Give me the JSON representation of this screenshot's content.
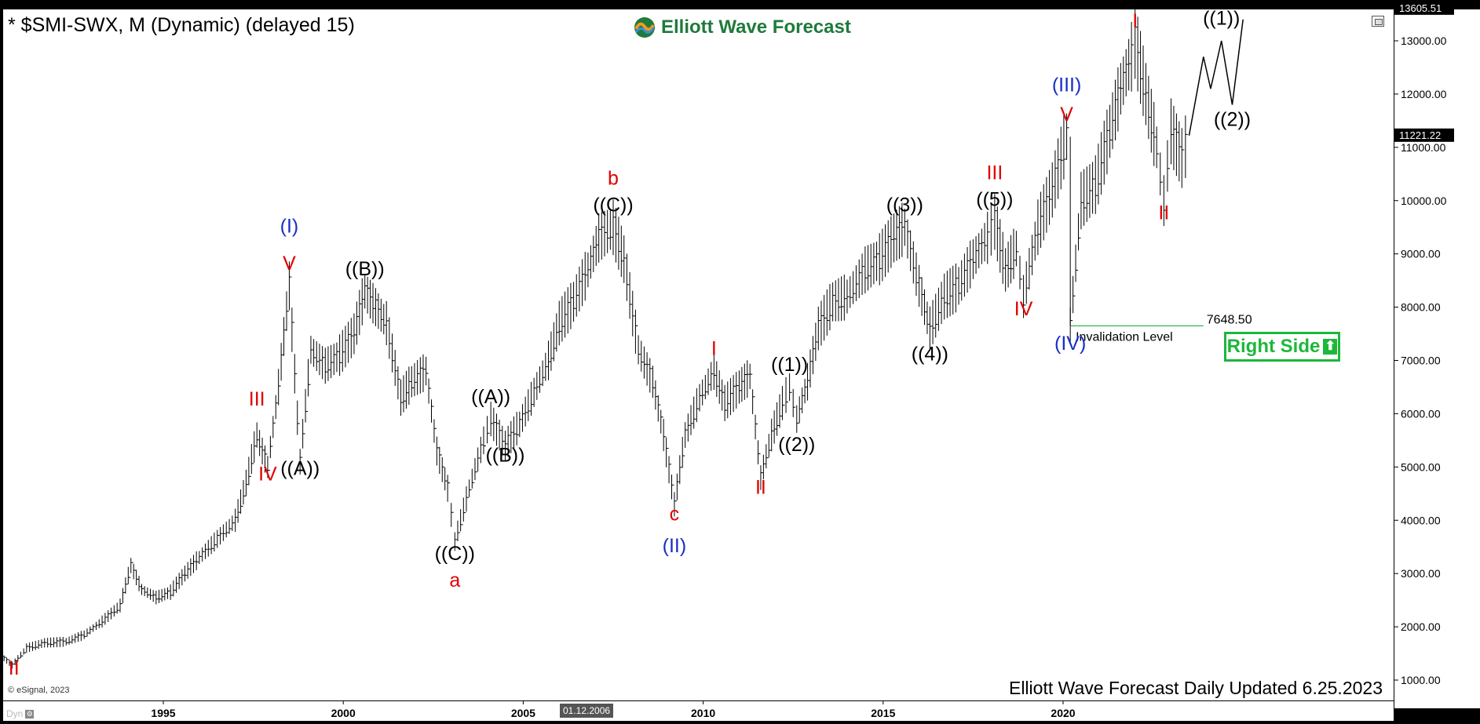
{
  "window": {
    "symbol_title": "* $SMI-SWX, M (Dynamic) (delayed 15)",
    "brand_name": "Elliott Wave Forecast",
    "footer_text": "Elliott Wave Forecast Daily Updated 6.25.2023",
    "copyright": "© eSignal, 2023",
    "dyn_label": "Dyn",
    "date_cursor": "01.12.2006",
    "right_side_label": "Right Side"
  },
  "colors": {
    "black": "#000000",
    "red": "#e00000",
    "blue": "#1a2fc4",
    "green": "#1db73a",
    "brand": "#1f7a3c"
  },
  "icons": {
    "logo": "elliott-wave-logo-icon",
    "window_button": "window-restore-icon",
    "arrow": "up-arrow-icon"
  },
  "chart_data": {
    "type": "line",
    "title": "* $SMI-SWX, M (Dynamic) (delayed 15)",
    "ylim": [
      700,
      13800
    ],
    "y_ticks": [
      1000,
      2000,
      3000,
      4000,
      5000,
      6000,
      7000,
      8000,
      9000,
      10000,
      11000,
      12000,
      13000
    ],
    "y_tick_labels": [
      "1000.00",
      "2000.00",
      "3000.00",
      "4000.00",
      "5000.00",
      "6000.00",
      "7000.00",
      "8000.00",
      "9000.00",
      "10000.00",
      "11000.00",
      "12000.00",
      "13000.00"
    ],
    "xlim": [
      1990.5,
      2025.0
    ],
    "x_ticks": [
      1995,
      2000,
      2005,
      2010,
      2015,
      2020
    ],
    "x_tick_labels": [
      "1995",
      "2000",
      "2005",
      "2010",
      "2015",
      "2020"
    ],
    "price_badges": [
      {
        "label": "13605.51",
        "value": 13605.51
      },
      {
        "label": "11221.22",
        "value": 11221.22
      }
    ],
    "price_path": [
      [
        1990.5,
        1450
      ],
      [
        1990.8,
        1280
      ],
      [
        1991.2,
        1600
      ],
      [
        1991.7,
        1700
      ],
      [
        1992.3,
        1720
      ],
      [
        1992.8,
        1850
      ],
      [
        1993.3,
        2100
      ],
      [
        1993.8,
        2400
      ],
      [
        1994.1,
        3150
      ],
      [
        1994.4,
        2700
      ],
      [
        1994.8,
        2550
      ],
      [
        1995.2,
        2650
      ],
      [
        1995.6,
        3000
      ],
      [
        1996.0,
        3300
      ],
      [
        1996.5,
        3650
      ],
      [
        1997.0,
        4000
      ],
      [
        1997.3,
        4700
      ],
      [
        1997.6,
        5600
      ],
      [
        1997.9,
        5000
      ],
      [
        1998.2,
        6500
      ],
      [
        1998.5,
        8400
      ],
      [
        1998.8,
        5100
      ],
      [
        1999.1,
        7200
      ],
      [
        1999.5,
        6900
      ],
      [
        1999.9,
        7100
      ],
      [
        2000.3,
        7500
      ],
      [
        2000.6,
        8300
      ],
      [
        2000.9,
        8000
      ],
      [
        2001.2,
        7700
      ],
      [
        2001.6,
        6300
      ],
      [
        2001.9,
        6600
      ],
      [
        2002.3,
        6800
      ],
      [
        2002.6,
        5300
      ],
      [
        2002.9,
        4600
      ],
      [
        2003.1,
        3600
      ],
      [
        2003.5,
        4600
      ],
      [
        2003.9,
        5500
      ],
      [
        2004.1,
        5900
      ],
      [
        2004.5,
        5400
      ],
      [
        2004.9,
        5800
      ],
      [
        2005.3,
        6400
      ],
      [
        2005.7,
        7000
      ],
      [
        2006.0,
        7700
      ],
      [
        2006.4,
        8100
      ],
      [
        2006.8,
        8700
      ],
      [
        2007.1,
        9300
      ],
      [
        2007.5,
        9500
      ],
      [
        2007.8,
        8900
      ],
      [
        2008.2,
        7200
      ],
      [
        2008.6,
        6600
      ],
      [
        2008.9,
        5600
      ],
      [
        2009.2,
        4300
      ],
      [
        2009.5,
        5600
      ],
      [
        2009.9,
        6300
      ],
      [
        2010.3,
        6800
      ],
      [
        2010.6,
        6200
      ],
      [
        2011.0,
        6500
      ],
      [
        2011.3,
        6700
      ],
      [
        2011.6,
        4800
      ],
      [
        2011.9,
        5600
      ],
      [
        2012.2,
        6200
      ],
      [
        2012.4,
        6500
      ],
      [
        2012.6,
        5900
      ],
      [
        2012.9,
        6600
      ],
      [
        2013.2,
        7600
      ],
      [
        2013.6,
        8100
      ],
      [
        2014.0,
        8200
      ],
      [
        2014.5,
        8700
      ],
      [
        2014.9,
        8900
      ],
      [
        2015.3,
        9300
      ],
      [
        2015.6,
        9500
      ],
      [
        2016.0,
        8400
      ],
      [
        2016.3,
        7600
      ],
      [
        2016.7,
        8200
      ],
      [
        2017.1,
        8400
      ],
      [
        2017.5,
        8900
      ],
      [
        2017.9,
        9300
      ],
      [
        2018.1,
        9600
      ],
      [
        2018.4,
        8700
      ],
      [
        2018.7,
        9100
      ],
      [
        2018.9,
        8200
      ],
      [
        2019.3,
        9500
      ],
      [
        2019.7,
        10200
      ],
      [
        2020.1,
        11200
      ],
      [
        2020.2,
        7648.5
      ],
      [
        2020.5,
        10000
      ],
      [
        2020.9,
        10300
      ],
      [
        2021.3,
        11300
      ],
      [
        2021.6,
        12100
      ],
      [
        2021.9,
        12700
      ],
      [
        2022.0,
        13000
      ],
      [
        2022.3,
        12000
      ],
      [
        2022.6,
        11000
      ],
      [
        2022.8,
        10000
      ],
      [
        2023.0,
        11300
      ],
      [
        2023.3,
        10800
      ],
      [
        2023.5,
        11221
      ]
    ],
    "projection_path": [
      [
        2023.5,
        11221
      ],
      [
        2023.9,
        12700
      ],
      [
        2024.1,
        12100
      ],
      [
        2024.4,
        13000
      ],
      [
        2024.7,
        11800
      ],
      [
        2025.0,
        13400
      ]
    ],
    "invalidation": {
      "value": 7648.5,
      "label": "7648.50",
      "text": "Invalidation Level",
      "x_start": 2020.2,
      "x_end": 2023.9
    },
    "wave_labels": [
      {
        "text": "II",
        "x": 1990.85,
        "y": 1100,
        "color": "red"
      },
      {
        "text": "III",
        "x": 1997.6,
        "y": 6150,
        "color": "red"
      },
      {
        "text": "IV",
        "x": 1997.9,
        "y": 4750,
        "color": "red"
      },
      {
        "text": "V",
        "x": 1998.5,
        "y": 8700,
        "color": "red"
      },
      {
        "text": "(I)",
        "x": 1998.5,
        "y": 9400,
        "color": "blue"
      },
      {
        "text": "((A))",
        "x": 1998.8,
        "y": 4850,
        "color": "black"
      },
      {
        "text": "((B))",
        "x": 2000.6,
        "y": 8600,
        "color": "black"
      },
      {
        "text": "((C))",
        "x": 2003.1,
        "y": 3250,
        "color": "black"
      },
      {
        "text": "a",
        "x": 2003.1,
        "y": 2750,
        "color": "red"
      },
      {
        "text": "((A))",
        "x": 2004.1,
        "y": 6200,
        "color": "black"
      },
      {
        "text": "((B))",
        "x": 2004.5,
        "y": 5100,
        "color": "black"
      },
      {
        "text": "((C))",
        "x": 2007.5,
        "y": 9800,
        "color": "black"
      },
      {
        "text": "b",
        "x": 2007.5,
        "y": 10300,
        "color": "red"
      },
      {
        "text": "c",
        "x": 2009.2,
        "y": 4000,
        "color": "red"
      },
      {
        "text": "(II)",
        "x": 2009.2,
        "y": 3400,
        "color": "blue"
      },
      {
        "text": "I",
        "x": 2010.3,
        "y": 7100,
        "color": "red"
      },
      {
        "text": "II",
        "x": 2011.6,
        "y": 4500,
        "color": "red"
      },
      {
        "text": "((1))",
        "x": 2012.4,
        "y": 6800,
        "color": "black"
      },
      {
        "text": "((2))",
        "x": 2012.6,
        "y": 5300,
        "color": "black"
      },
      {
        "text": "((3))",
        "x": 2015.6,
        "y": 9800,
        "color": "black"
      },
      {
        "text": "((4))",
        "x": 2016.3,
        "y": 7000,
        "color": "black"
      },
      {
        "text": "((5))",
        "x": 2018.1,
        "y": 9900,
        "color": "black"
      },
      {
        "text": "III",
        "x": 2018.1,
        "y": 10400,
        "color": "red"
      },
      {
        "text": "IV",
        "x": 2018.9,
        "y": 7850,
        "color": "red"
      },
      {
        "text": "V",
        "x": 2020.1,
        "y": 11500,
        "color": "red"
      },
      {
        "text": "(III)",
        "x": 2020.1,
        "y": 12050,
        "color": "blue"
      },
      {
        "text": "(IV)",
        "x": 2020.2,
        "y": 7200,
        "color": "blue"
      },
      {
        "text": "I",
        "x": 2022.0,
        "y": 13250,
        "color": "red"
      },
      {
        "text": "II",
        "x": 2022.8,
        "y": 9650,
        "color": "red"
      },
      {
        "text": "((1))",
        "x": 2024.4,
        "y": 13300,
        "color": "black"
      },
      {
        "text": "((2))",
        "x": 2024.7,
        "y": 11400,
        "color": "black"
      }
    ]
  }
}
